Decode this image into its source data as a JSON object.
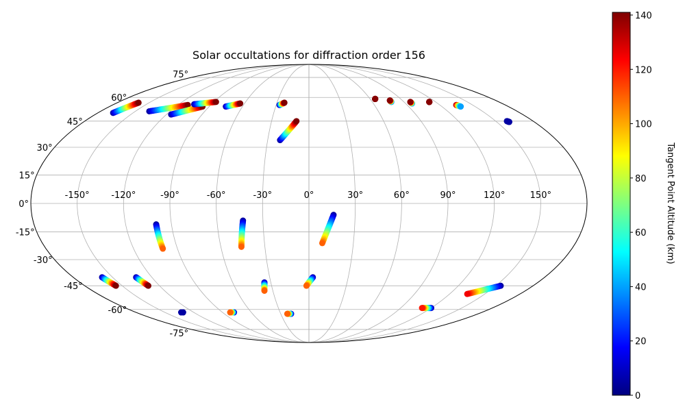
{
  "chart_data": {
    "type": "scatter",
    "projection": "mollweide",
    "title": "Solar occultations for diffraction order 156",
    "grid": true,
    "longitude_ticks": [
      -150,
      -120,
      -90,
      -60,
      -30,
      0,
      30,
      60,
      90,
      120,
      150
    ],
    "longitude_tick_labels": [
      "-150°",
      "-120°",
      "-90°",
      "-60°",
      "-30°",
      "0°",
      "30°",
      "60°",
      "90°",
      "120°",
      "150°"
    ],
    "latitude_ticks": [
      -75,
      -60,
      -45,
      -30,
      -15,
      0,
      15,
      30,
      45,
      60,
      75
    ],
    "latitude_tick_labels": [
      "-75°",
      "-60°",
      "-45°",
      "-30°",
      "-15°",
      "0°",
      "15°",
      "30°",
      "45°",
      "60°",
      "75°"
    ],
    "colorbar": {
      "label": "Tangent Point Altitude (km)",
      "colormap": "jet",
      "range": [
        0,
        141
      ],
      "ticks": [
        0,
        20,
        40,
        60,
        80,
        100,
        120,
        140
      ],
      "tick_labels": [
        "0",
        "20",
        "40",
        "60",
        "80",
        "100",
        "120",
        "140"
      ],
      "colors": [
        "#00007f",
        "#0000ff",
        "#007fff",
        "#00ffff",
        "#7fff7f",
        "#ffff00",
        "#ff7f00",
        "#ff0000",
        "#7f0000"
      ]
    },
    "tracks": [
      {
        "start": [
          -167,
          50
        ],
        "end": [
          -160,
          56.5
        ],
        "alt_start": 5,
        "alt_end": 141
      },
      {
        "start": [
          -138,
          51
        ],
        "end": [
          -111,
          55
        ],
        "alt_start": 5,
        "alt_end": 141
      },
      {
        "start": [
          -116,
          49
        ],
        "end": [
          -96,
          54
        ],
        "alt_start": 5,
        "alt_end": 141
      },
      {
        "start": [
          -106,
          55.5
        ],
        "end": [
          -88,
          57
        ],
        "alt_start": 5,
        "alt_end": 141
      },
      {
        "start": [
          -75,
          54
        ],
        "end": [
          -64,
          56
        ],
        "alt_start": 5,
        "alt_end": 141
      },
      {
        "start": [
          -27,
          55
        ],
        "end": [
          -23,
          56.5
        ],
        "alt_start": 5,
        "alt_end": 141
      },
      {
        "start": [
          -21,
          34
        ],
        "end": [
          -10,
          45
        ],
        "alt_start": 5,
        "alt_end": 141
      },
      {
        "start": [
          65,
          59
        ],
        "end": [
          65,
          59
        ],
        "alt_start": 140,
        "alt_end": 140
      },
      {
        "start": [
          78,
          57
        ],
        "end": [
          78,
          58
        ],
        "alt_start": 25,
        "alt_end": 140
      },
      {
        "start": [
          96,
          56
        ],
        "end": [
          96,
          57
        ],
        "alt_start": 30,
        "alt_end": 140
      },
      {
        "start": [
          114,
          57
        ],
        "end": [
          114,
          57
        ],
        "alt_start": 140,
        "alt_end": 140
      },
      {
        "start": [
          135,
          55
        ],
        "end": [
          137,
          54
        ],
        "alt_start": 140,
        "alt_end": 40
      },
      {
        "start": [
          159,
          45
        ],
        "end": [
          160,
          44.5
        ],
        "alt_start": 5,
        "alt_end": 5
      },
      {
        "start": [
          -100,
          -11
        ],
        "end": [
          -100,
          -24
        ],
        "alt_start": 5,
        "alt_end": 110
      },
      {
        "start": [
          -43,
          -9
        ],
        "end": [
          -46,
          -23
        ],
        "alt_start": 5,
        "alt_end": 110
      },
      {
        "start": [
          16,
          -6
        ],
        "end": [
          9,
          -21
        ],
        "alt_start": 5,
        "alt_end": 110
      },
      {
        "start": [
          -158,
          -40
        ],
        "end": [
          -155,
          -45
        ],
        "alt_start": 5,
        "alt_end": 141
      },
      {
        "start": [
          -132,
          -40
        ],
        "end": [
          -129,
          -45
        ],
        "alt_start": 5,
        "alt_end": 141
      },
      {
        "start": [
          -35,
          -43
        ],
        "end": [
          -37,
          -48
        ],
        "alt_start": 5,
        "alt_end": 110
      },
      {
        "start": [
          3,
          -40
        ],
        "end": [
          -2,
          -45
        ],
        "alt_start": 5,
        "alt_end": 110
      },
      {
        "start": [
          -131,
          -62
        ],
        "end": [
          -133,
          -62
        ],
        "alt_start": 5,
        "alt_end": 5
      },
      {
        "start": [
          -78,
          -62
        ],
        "end": [
          -82,
          -62
        ],
        "alt_start": 5,
        "alt_end": 110
      },
      {
        "start": [
          -19,
          -63
        ],
        "end": [
          -23,
          -63
        ],
        "alt_start": 5,
        "alt_end": 110
      },
      {
        "start": [
          120,
          -59
        ],
        "end": [
          111,
          -59
        ],
        "alt_start": 5,
        "alt_end": 120
      },
      {
        "start": [
          154,
          -45
        ],
        "end": [
          135,
          -50
        ],
        "alt_start": 5,
        "alt_end": 125
      }
    ]
  }
}
